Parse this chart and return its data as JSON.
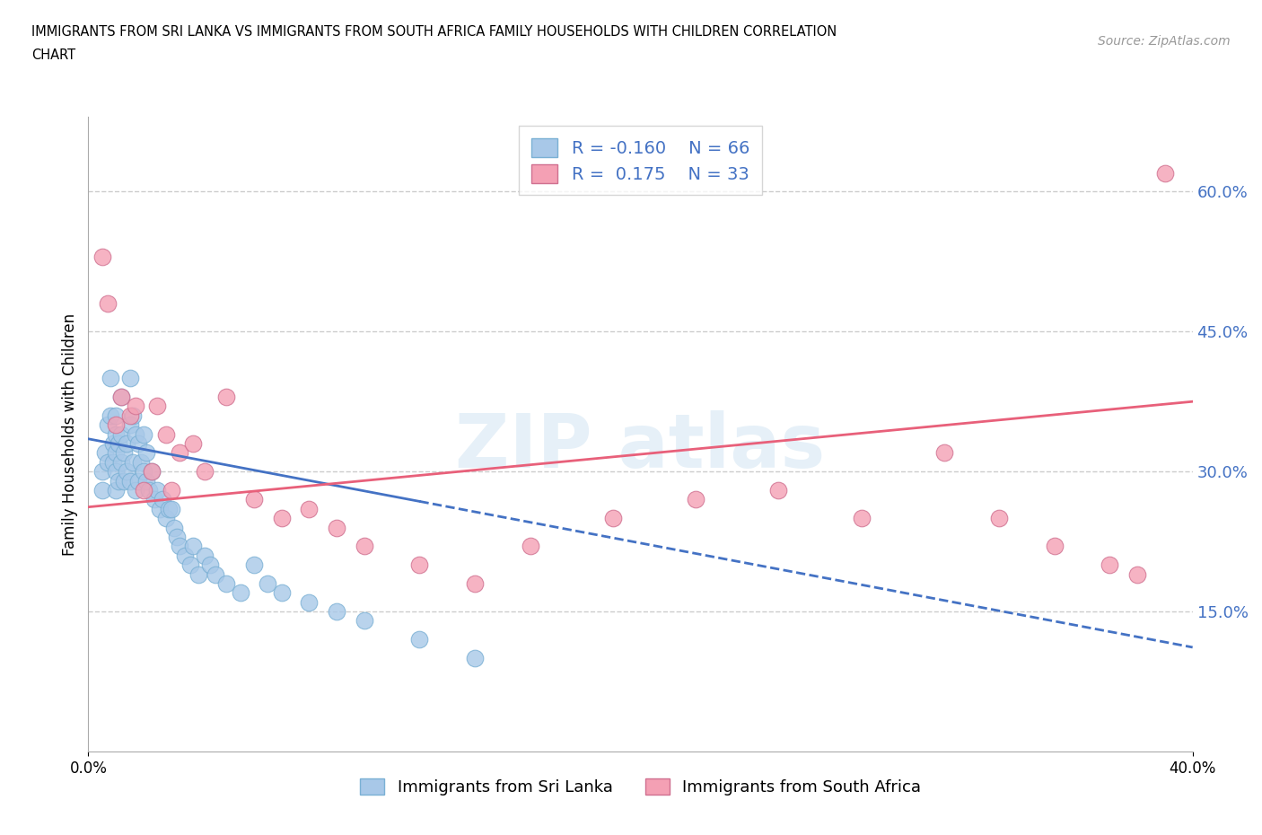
{
  "title_line1": "IMMIGRANTS FROM SRI LANKA VS IMMIGRANTS FROM SOUTH AFRICA FAMILY HOUSEHOLDS WITH CHILDREN CORRELATION",
  "title_line2": "CHART",
  "source": "Source: ZipAtlas.com",
  "ylabel": "Family Households with Children",
  "xlim": [
    0.0,
    0.4
  ],
  "ylim": [
    0.0,
    0.68
  ],
  "xtick_positions": [
    0.0,
    0.4
  ],
  "xticklabels": [
    "0.0%",
    "40.0%"
  ],
  "yticks_right": [
    0.15,
    0.3,
    0.45,
    0.6
  ],
  "yticklabels_right": [
    "15.0%",
    "30.0%",
    "45.0%",
    "60.0%"
  ],
  "sri_lanka_R": -0.16,
  "sri_lanka_N": 66,
  "south_africa_R": 0.175,
  "south_africa_N": 33,
  "sri_lanka_dot_color": "#a8c8e8",
  "south_africa_dot_color": "#f4a0b4",
  "sri_lanka_line_color": "#4472c4",
  "south_africa_line_color": "#e8607a",
  "grid_color": "#cccccc",
  "tick_label_color": "#4472c4",
  "sri_lanka_x": [
    0.005,
    0.005,
    0.006,
    0.007,
    0.007,
    0.008,
    0.008,
    0.009,
    0.009,
    0.01,
    0.01,
    0.01,
    0.01,
    0.01,
    0.011,
    0.011,
    0.012,
    0.012,
    0.012,
    0.013,
    0.013,
    0.014,
    0.014,
    0.015,
    0.015,
    0.015,
    0.016,
    0.016,
    0.017,
    0.017,
    0.018,
    0.018,
    0.019,
    0.02,
    0.02,
    0.021,
    0.021,
    0.022,
    0.023,
    0.024,
    0.025,
    0.026,
    0.027,
    0.028,
    0.029,
    0.03,
    0.031,
    0.032,
    0.033,
    0.035,
    0.037,
    0.038,
    0.04,
    0.042,
    0.044,
    0.046,
    0.05,
    0.055,
    0.06,
    0.065,
    0.07,
    0.08,
    0.09,
    0.1,
    0.12,
    0.14
  ],
  "sri_lanka_y": [
    0.3,
    0.28,
    0.32,
    0.35,
    0.31,
    0.4,
    0.36,
    0.33,
    0.31,
    0.34,
    0.32,
    0.3,
    0.28,
    0.36,
    0.33,
    0.29,
    0.38,
    0.34,
    0.31,
    0.32,
    0.29,
    0.33,
    0.3,
    0.4,
    0.35,
    0.29,
    0.36,
    0.31,
    0.34,
    0.28,
    0.33,
    0.29,
    0.31,
    0.3,
    0.34,
    0.29,
    0.32,
    0.28,
    0.3,
    0.27,
    0.28,
    0.26,
    0.27,
    0.25,
    0.26,
    0.26,
    0.24,
    0.23,
    0.22,
    0.21,
    0.2,
    0.22,
    0.19,
    0.21,
    0.2,
    0.19,
    0.18,
    0.17,
    0.2,
    0.18,
    0.17,
    0.16,
    0.15,
    0.14,
    0.12,
    0.1
  ],
  "south_africa_x": [
    0.005,
    0.007,
    0.01,
    0.012,
    0.015,
    0.017,
    0.02,
    0.023,
    0.025,
    0.028,
    0.03,
    0.033,
    0.038,
    0.042,
    0.05,
    0.06,
    0.07,
    0.08,
    0.09,
    0.1,
    0.12,
    0.14,
    0.16,
    0.19,
    0.22,
    0.25,
    0.28,
    0.31,
    0.33,
    0.35,
    0.37,
    0.38,
    0.39
  ],
  "south_africa_y": [
    0.53,
    0.48,
    0.35,
    0.38,
    0.36,
    0.37,
    0.28,
    0.3,
    0.37,
    0.34,
    0.28,
    0.32,
    0.33,
    0.3,
    0.38,
    0.27,
    0.25,
    0.26,
    0.24,
    0.22,
    0.2,
    0.18,
    0.22,
    0.25,
    0.27,
    0.28,
    0.25,
    0.32,
    0.25,
    0.22,
    0.2,
    0.19,
    0.62
  ],
  "sri_lanka_trend_x0": 0.0,
  "sri_lanka_trend_y0": 0.335,
  "sri_lanka_trend_x1": 0.12,
  "sri_lanka_trend_y1": 0.268,
  "south_africa_trend_x0": 0.0,
  "south_africa_trend_y0": 0.262,
  "south_africa_trend_x1": 0.4,
  "south_africa_trend_y1": 0.375
}
